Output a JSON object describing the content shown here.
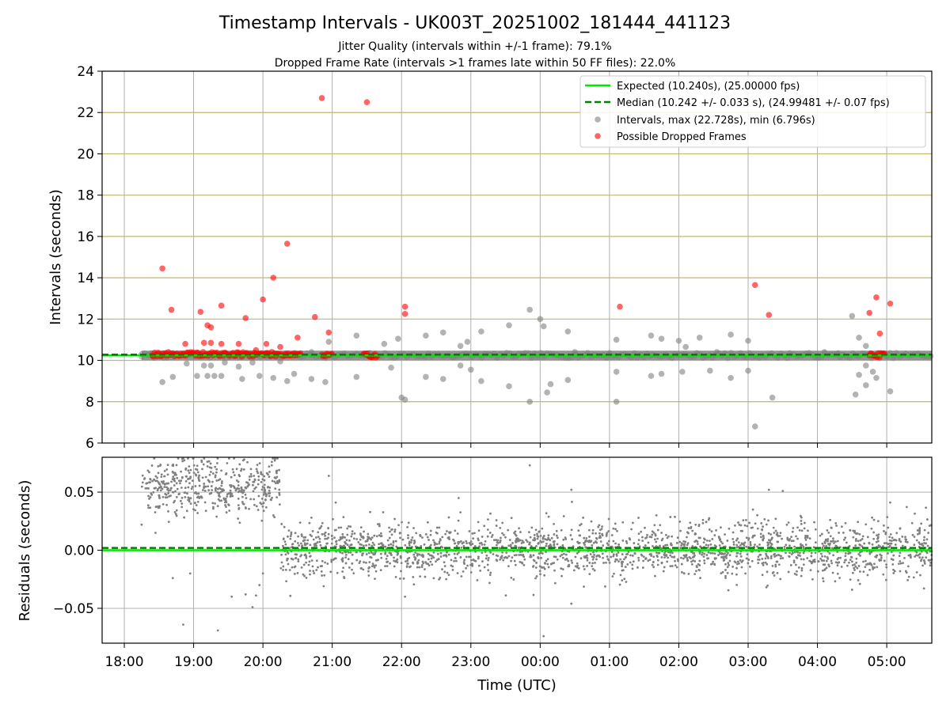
{
  "chart_data": {
    "type": "scatter",
    "title": "Timestamp Intervals - UK003T_20251002_181444_441123",
    "subtitle_lines": [
      "Jitter Quality (intervals within +/-1 frame): 79.1%",
      "Dropped Frame Rate (intervals >1 frames late within 50 FF files): 22.0%"
    ],
    "xlabel": "Time (UTC)",
    "x_unit": "hours after 18:00 UTC",
    "xlim": [
      -0.32,
      11.65
    ],
    "x_ticks": [
      {
        "value": 0,
        "label": "18:00"
      },
      {
        "value": 1,
        "label": "19:00"
      },
      {
        "value": 2,
        "label": "20:00"
      },
      {
        "value": 3,
        "label": "21:00"
      },
      {
        "value": 4,
        "label": "22:00"
      },
      {
        "value": 5,
        "label": "23:00"
      },
      {
        "value": 6,
        "label": "00:00"
      },
      {
        "value": 7,
        "label": "01:00"
      },
      {
        "value": 8,
        "label": "02:00"
      },
      {
        "value": 9,
        "label": "03:00"
      },
      {
        "value": 10,
        "label": "04:00"
      },
      {
        "value": 11,
        "label": "05:00"
      }
    ],
    "colors": {
      "expected": "#00e600",
      "median": "#008000",
      "intervals": "#808080",
      "dropped": "#ff0000",
      "band": "#bdb76b",
      "grid": "#b0b0b0"
    },
    "top_panel": {
      "ylabel": "Intervals (seconds)",
      "ylim": [
        6,
        24
      ],
      "y_ticks": [
        6,
        8,
        10,
        12,
        14,
        16,
        18,
        20,
        22,
        24
      ],
      "horizontal_bands": [
        8,
        10,
        12,
        14,
        16,
        18,
        20,
        22
      ],
      "expected_value": 10.24,
      "median_value": 10.242,
      "dense_band": {
        "x_start": 0.25,
        "x_end": 11.65,
        "value": 10.24
      },
      "series": [
        {
          "name": "Intervals, max (22.728s), min (6.796s)",
          "points": [
            [
              0.25,
              10.3
            ],
            [
              0.55,
              8.95
            ],
            [
              0.7,
              9.2
            ],
            [
              0.9,
              9.85
            ],
            [
              1.05,
              9.25
            ],
            [
              1.15,
              9.75
            ],
            [
              1.2,
              9.25
            ],
            [
              1.25,
              9.75
            ],
            [
              1.3,
              9.25
            ],
            [
              1.4,
              9.25
            ],
            [
              1.45,
              9.9
            ],
            [
              1.65,
              9.7
            ],
            [
              1.7,
              9.1
            ],
            [
              1.85,
              9.9
            ],
            [
              1.95,
              9.25
            ],
            [
              2.15,
              9.15
            ],
            [
              2.25,
              9.95
            ],
            [
              2.35,
              9.0
            ],
            [
              2.45,
              9.35
            ],
            [
              2.7,
              9.1
            ],
            [
              2.7,
              10.4
            ],
            [
              2.9,
              8.95
            ],
            [
              2.95,
              10.9
            ],
            [
              3.35,
              9.2
            ],
            [
              3.35,
              11.2
            ],
            [
              3.75,
              10.8
            ],
            [
              3.85,
              9.65
            ],
            [
              3.95,
              11.05
            ],
            [
              4.0,
              8.2
            ],
            [
              4.05,
              8.1
            ],
            [
              4.35,
              11.2
            ],
            [
              4.35,
              9.2
            ],
            [
              4.6,
              11.35
            ],
            [
              4.6,
              9.1
            ],
            [
              4.85,
              10.7
            ],
            [
              4.85,
              9.75
            ],
            [
              4.95,
              10.9
            ],
            [
              5.0,
              9.55
            ],
            [
              5.15,
              11.4
            ],
            [
              5.15,
              9.0
            ],
            [
              5.55,
              11.7
            ],
            [
              5.55,
              8.75
            ],
            [
              5.85,
              12.45
            ],
            [
              5.85,
              8.0
            ],
            [
              6.0,
              12.0
            ],
            [
              6.05,
              11.65
            ],
            [
              6.1,
              8.45
            ],
            [
              6.15,
              8.85
            ],
            [
              6.4,
              11.4
            ],
            [
              6.4,
              9.05
            ],
            [
              7.1,
              11.0
            ],
            [
              7.1,
              9.45
            ],
            [
              7.1,
              8.0
            ],
            [
              7.6,
              11.2
            ],
            [
              7.6,
              9.25
            ],
            [
              7.75,
              11.05
            ],
            [
              7.75,
              9.35
            ],
            [
              8.0,
              10.95
            ],
            [
              8.05,
              9.45
            ],
            [
              8.1,
              10.65
            ],
            [
              8.3,
              11.1
            ],
            [
              8.45,
              9.5
            ],
            [
              8.75,
              11.25
            ],
            [
              8.75,
              9.15
            ],
            [
              9.0,
              10.95
            ],
            [
              9.0,
              9.5
            ],
            [
              9.1,
              6.8
            ],
            [
              9.35,
              8.2
            ],
            [
              10.5,
              12.15
            ],
            [
              10.55,
              8.35
            ],
            [
              10.6,
              11.1
            ],
            [
              10.6,
              9.3
            ],
            [
              10.7,
              10.7
            ],
            [
              10.7,
              9.75
            ],
            [
              10.7,
              8.8
            ],
            [
              10.8,
              9.45
            ],
            [
              10.85,
              9.15
            ],
            [
              11.05,
              8.5
            ],
            [
              3.55,
              10.35
            ],
            [
              6.5,
              10.4
            ],
            [
              7.0,
              10.35
            ],
            [
              8.55,
              10.4
            ],
            [
              9.6,
              10.35
            ],
            [
              10.1,
              10.4
            ],
            [
              2.5,
              10.3
            ],
            [
              10.3,
              10.35
            ]
          ]
        },
        {
          "name": "Possible Dropped Frames",
          "points": [
            [
              0.55,
              14.45
            ],
            [
              0.68,
              12.45
            ],
            [
              0.88,
              10.8
            ],
            [
              1.1,
              12.35
            ],
            [
              1.15,
              10.85
            ],
            [
              1.2,
              11.7
            ],
            [
              1.25,
              11.6
            ],
            [
              1.25,
              10.85
            ],
            [
              1.4,
              12.65
            ],
            [
              1.4,
              10.8
            ],
            [
              1.65,
              10.8
            ],
            [
              1.75,
              12.05
            ],
            [
              1.9,
              10.5
            ],
            [
              2.0,
              12.95
            ],
            [
              2.05,
              10.8
            ],
            [
              2.15,
              14.0
            ],
            [
              2.25,
              10.65
            ],
            [
              2.35,
              15.65
            ],
            [
              2.5,
              11.1
            ],
            [
              2.75,
              12.1
            ],
            [
              2.85,
              22.7
            ],
            [
              2.95,
              11.35
            ],
            [
              3.5,
              22.5
            ],
            [
              4.05,
              12.25
            ],
            [
              4.05,
              12.6
            ],
            [
              7.15,
              12.6
            ],
            [
              9.1,
              13.65
            ],
            [
              9.3,
              12.2
            ],
            [
              10.75,
              12.3
            ],
            [
              10.85,
              13.05
            ],
            [
              10.9,
              11.3
            ],
            [
              11.05,
              12.75
            ]
          ],
          "dense_runs": [
            [
              0.4,
              2.55,
              10.3
            ],
            [
              2.85,
              3.0,
              10.25
            ],
            [
              3.45,
              3.65,
              10.25
            ],
            [
              10.75,
              10.98,
              10.25
            ]
          ]
        }
      ],
      "legend": {
        "placement": "top-right",
        "entries": [
          {
            "label": "Expected (10.240s), (25.00000 fps)",
            "style": "solid-line",
            "color": "#00e600"
          },
          {
            "label": "Median (10.242 +/- 0.033 s), (24.99481 +/- 0.07 fps)",
            "style": "dashed-line",
            "color": "#008000"
          },
          {
            "label": "Intervals, max (22.728s), min (6.796s)",
            "style": "marker",
            "color": "#808080"
          },
          {
            "label": "Possible Dropped Frames",
            "style": "marker",
            "color": "#ff0000"
          }
        ]
      }
    },
    "bottom_panel": {
      "ylabel": "Residuals (seconds)",
      "ylim": [
        -0.08,
        0.08
      ],
      "y_ticks": [
        {
          "value": 0.05,
          "label": "0.05"
        },
        {
          "value": 0.0,
          "label": "0.00"
        },
        {
          "value": -0.05,
          "label": "−0.05"
        }
      ],
      "expected_value": 0.0,
      "median_value": 0.002,
      "residual_distribution": [
        {
          "x_range": [
            0.25,
            2.25
          ],
          "center": 0.055,
          "spread": 0.013,
          "density": 480
        },
        {
          "x_range": [
            2.25,
            11.65
          ],
          "center": 0.0,
          "spread": 0.012,
          "density": 2100
        }
      ],
      "outliers": [
        [
          0.25,
          0.022
        ],
        [
          0.45,
          0.015
        ],
        [
          0.7,
          -0.024
        ],
        [
          0.85,
          -0.064
        ],
        [
          0.95,
          -0.02
        ],
        [
          1.35,
          -0.069
        ],
        [
          1.55,
          -0.04
        ],
        [
          1.75,
          -0.038
        ],
        [
          1.85,
          -0.049
        ],
        [
          1.9,
          -0.039
        ],
        [
          1.95,
          -0.03
        ],
        [
          2.0,
          -0.02
        ],
        [
          2.15,
          0.03
        ],
        [
          2.3,
          0.01
        ],
        [
          2.7,
          0.028
        ],
        [
          2.95,
          0.064
        ],
        [
          3.05,
          0.041
        ],
        [
          4.05,
          -0.04
        ],
        [
          5.85,
          0.073
        ],
        [
          6.05,
          -0.074
        ],
        [
          6.45,
          -0.046
        ],
        [
          6.45,
          0.052
        ],
        [
          9.3,
          0.052
        ],
        [
          9.5,
          0.051
        ],
        [
          10.5,
          -0.034
        ],
        [
          11.05,
          0.041
        ]
      ]
    }
  }
}
